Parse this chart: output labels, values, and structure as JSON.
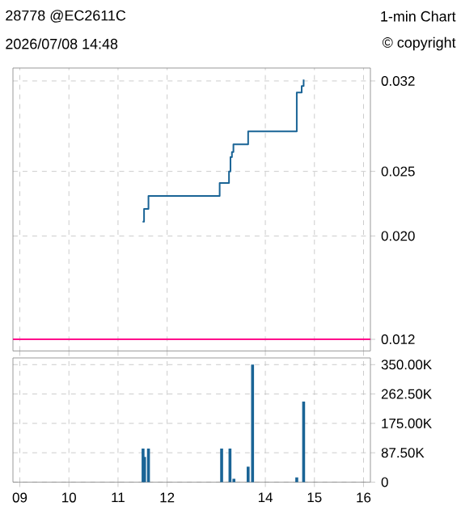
{
  "chart_data": [
    {
      "type": "step",
      "title": "28778 @EC2611C",
      "subtitle": "1-min Chart",
      "annotations": [
        "2026/07/08 14:48",
        "© copyright"
      ],
      "series": [
        {
          "color": "#1a6496",
          "x": [
            11.5,
            11.53,
            11.62,
            13.07,
            13.26,
            13.29,
            13.32,
            13.35,
            13.65,
            14.64,
            14.74,
            14.78
          ],
          "values": [
            0.0211,
            0.0221,
            0.0231,
            0.0241,
            0.025,
            0.0261,
            0.0265,
            0.0271,
            0.0281,
            0.0311,
            0.0316,
            0.0321
          ]
        }
      ],
      "xlim": [
        8.86,
        16.14
      ],
      "ylim": [
        0.0111,
        0.033
      ],
      "xticks": [
        9,
        10,
        11,
        12,
        14,
        15,
        16
      ],
      "yticks": [
        0.032,
        0.025,
        {
          "value": 0.02,
          "label": "0.020"
        },
        0.012
      ],
      "ref_lines": [
        {
          "axis": "y",
          "value": 0.012,
          "color": "#ff0a8c"
        }
      ],
      "grid": true,
      "tick_labels": "y"
    },
    {
      "type": "bar",
      "color": "#1a6496",
      "x": [
        11.51,
        11.54,
        11.62,
        13.11,
        13.28,
        13.36,
        13.65,
        13.74,
        14.64,
        14.78
      ],
      "values": [
        100000,
        75000,
        100000,
        100000,
        100000,
        10000,
        46000,
        350000,
        14000,
        240000
      ],
      "xlim": [
        8.86,
        16.14
      ],
      "ylim": [
        0,
        370000
      ],
      "xticks": [
        {
          "value": 9,
          "label": "09"
        },
        10,
        11,
        12,
        14,
        15,
        16
      ],
      "yticks": [
        0,
        {
          "value": 87500,
          "label": "87.50K"
        },
        {
          "value": 175000,
          "label": "175.00K"
        },
        {
          "value": 262500,
          "label": "262.50K"
        },
        {
          "value": 350000,
          "label": "350.00K"
        }
      ],
      "grid": true
    }
  ]
}
